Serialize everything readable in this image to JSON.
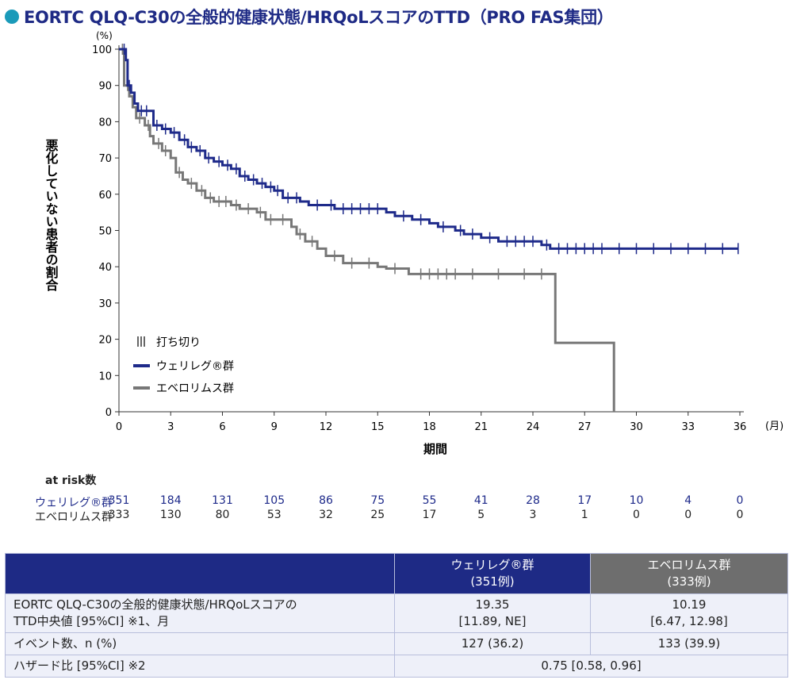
{
  "title": "EORTC QLQ-C30の全般的健康状態/HRQoLスコアのTTD（PRO FAS集団）",
  "chart_data": {
    "type": "line",
    "subtype": "kaplan-meier",
    "ylabel": "悪化していない患者の割合",
    "yunit": "(%)",
    "xlabel": "期間",
    "xunit": "(月)",
    "xlim": [
      0,
      36
    ],
    "ylim": [
      0,
      100
    ],
    "xticks": [
      0,
      3,
      6,
      9,
      12,
      15,
      18,
      21,
      24,
      27,
      30,
      33,
      36
    ],
    "yticks": [
      0,
      10,
      20,
      30,
      40,
      50,
      60,
      70,
      80,
      90,
      100
    ],
    "legend": {
      "censor": "打ち切り",
      "position": "bottom-left"
    },
    "series": [
      {
        "name": "ウェリレグ®群",
        "color": "#1e2a8a",
        "steps": [
          [
            0,
            100
          ],
          [
            0.4,
            97
          ],
          [
            0.5,
            90
          ],
          [
            0.7,
            88
          ],
          [
            0.9,
            85
          ],
          [
            1.1,
            83
          ],
          [
            2.0,
            79
          ],
          [
            2.5,
            78
          ],
          [
            3.0,
            77
          ],
          [
            3.5,
            75
          ],
          [
            4.0,
            73
          ],
          [
            4.5,
            72
          ],
          [
            5.0,
            70
          ],
          [
            5.5,
            69
          ],
          [
            6.0,
            68
          ],
          [
            6.5,
            67
          ],
          [
            7.0,
            65
          ],
          [
            7.5,
            64
          ],
          [
            8.0,
            63
          ],
          [
            8.5,
            62
          ],
          [
            9.0,
            61
          ],
          [
            9.5,
            59
          ],
          [
            10.5,
            58
          ],
          [
            11,
            57
          ],
          [
            12.5,
            56
          ],
          [
            15.5,
            55
          ],
          [
            16,
            54
          ],
          [
            17,
            53
          ],
          [
            18,
            52
          ],
          [
            18.5,
            51
          ],
          [
            19.5,
            50
          ],
          [
            20,
            49
          ],
          [
            21,
            48
          ],
          [
            22,
            47
          ],
          [
            24.5,
            46
          ],
          [
            25,
            45
          ],
          [
            35.9,
            45
          ]
        ],
        "censored": [
          0.3,
          0.6,
          1.3,
          1.6,
          2.2,
          2.7,
          3.2,
          3.8,
          4.2,
          4.7,
          5.2,
          5.8,
          6.3,
          6.8,
          7.3,
          7.8,
          8.3,
          8.8,
          9.2,
          9.8,
          10.3,
          11.5,
          12.3,
          13,
          13.5,
          14,
          14.5,
          15,
          16.5,
          17.5,
          18.8,
          19.8,
          20.5,
          21.5,
          22.5,
          23,
          23.5,
          24,
          24.8,
          25.5,
          26,
          26.5,
          27,
          27.5,
          28,
          29,
          30,
          31,
          32,
          33,
          34,
          35,
          35.9
        ]
      },
      {
        "name": "エベロリムス群",
        "color": "#777777",
        "steps": [
          [
            0,
            100
          ],
          [
            0.3,
            90
          ],
          [
            0.6,
            87
          ],
          [
            0.8,
            84
          ],
          [
            1.0,
            81
          ],
          [
            1.5,
            79
          ],
          [
            1.8,
            76
          ],
          [
            2.0,
            74
          ],
          [
            2.5,
            72
          ],
          [
            3.0,
            70
          ],
          [
            3.3,
            66
          ],
          [
            3.7,
            64
          ],
          [
            4.0,
            63
          ],
          [
            4.5,
            61
          ],
          [
            5.0,
            59
          ],
          [
            5.5,
            58
          ],
          [
            6.5,
            57
          ],
          [
            7.0,
            56
          ],
          [
            8.0,
            55
          ],
          [
            8.5,
            53
          ],
          [
            10,
            51
          ],
          [
            10.3,
            49
          ],
          [
            10.8,
            47
          ],
          [
            11.5,
            45
          ],
          [
            12,
            43
          ],
          [
            13,
            41
          ],
          [
            15,
            40
          ],
          [
            15.5,
            39.5
          ],
          [
            16.8,
            38
          ],
          [
            25.3,
            19
          ],
          [
            28.7,
            0
          ]
        ],
        "censored": [
          0.2,
          0.5,
          1.2,
          1.7,
          2.3,
          2.7,
          3.5,
          4.2,
          4.8,
          5.3,
          5.8,
          6.2,
          6.8,
          7.5,
          8.2,
          8.8,
          9.5,
          10.5,
          11.2,
          12.5,
          13.5,
          14.5,
          16,
          17.5,
          18,
          18.5,
          19,
          19.5,
          20.5,
          22,
          23.5,
          24.5
        ]
      }
    ]
  },
  "at_risk": {
    "label": "at risk数",
    "rows": [
      {
        "name": "ウェリレグ®群",
        "color": "#1e2a8a",
        "values": [
          "351",
          "184",
          "131",
          "105",
          "86",
          "75",
          "55",
          "41",
          "28",
          "17",
          "10",
          "4",
          "0"
        ]
      },
      {
        "name": "エベロリムス群",
        "color": "#222222",
        "values": [
          "333",
          "130",
          "80",
          "53",
          "32",
          "25",
          "17",
          "5",
          "3",
          "1",
          "0",
          "0",
          "0"
        ]
      }
    ]
  },
  "table": {
    "headers": [
      {
        "line1": "ウェリレグ®群",
        "line2": "(351例)",
        "color": "#1e2a85"
      },
      {
        "line1": "エベロリムス群",
        "line2": "(333例)",
        "color": "#6e6e6e"
      }
    ],
    "rows": [
      {
        "label1": "EORTC QLQ-C30の全般的健康状態/HRQoLスコアの",
        "label2": "TTD中央値 [95%CI] ※1、月",
        "a1": "19.35",
        "a2": "[11.89, NE]",
        "b1": "10.19",
        "b2": "[6.47, 12.98]"
      },
      {
        "label1": "イベント数、n (%)",
        "a1": "127 (36.2)",
        "b1": "133 (39.9)"
      },
      {
        "label1": "ハザード比 [95%CI] ※2",
        "ab": "0.75 [0.58, 0.96]"
      }
    ]
  }
}
